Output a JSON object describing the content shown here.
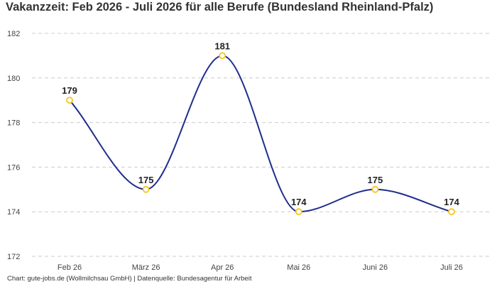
{
  "title": "Vakanzzeit: Feb 2026 - Juli 2026 für alle Berufe (Bundesland Rheinland-Pfalz)",
  "footer": "Chart: gute-jobs.de (Wollmilchsau GmbH) | Datenquelle: Bundesagentur für Arbeit",
  "colors": {
    "line": "#1f2d8c",
    "marker": "#f5c51c",
    "grid": "#cccccc"
  },
  "chart_data": {
    "type": "line",
    "categories": [
      "Feb 26",
      "März 26",
      "Apr 26",
      "Mai 26",
      "Juni 26",
      "Juli 26"
    ],
    "values": [
      179,
      175,
      181,
      174,
      175,
      174
    ],
    "ylim": [
      172,
      182
    ],
    "yticks": [
      172,
      174,
      176,
      178,
      180,
      182
    ],
    "grid": true,
    "smooth": true,
    "data_labels": true
  }
}
